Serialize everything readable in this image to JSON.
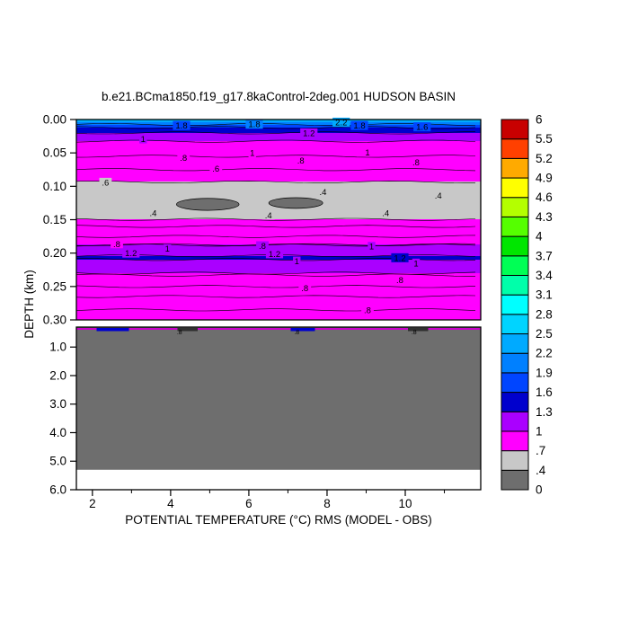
{
  "chart_data": {
    "type": "heatmap",
    "title": "b.e21.BCma1850.f19_g17.8kaControl-2deg.001 HUDSON BASIN",
    "xlabel": "POTENTIAL TEMPERATURE (°C) RMS (MODEL - OBS)",
    "ylabel": "DEPTH (km)",
    "xlim": [
      1.59,
      11.93
    ],
    "x_ticks": [
      2,
      4,
      6,
      8,
      10
    ],
    "x_minor_ticks": [
      3,
      5,
      7,
      9,
      11
    ],
    "levels": [
      0,
      0.4,
      0.7,
      1,
      1.3,
      1.6,
      1.9,
      2.2,
      2.5,
      2.8,
      3.1,
      3.4,
      3.7,
      4,
      4.3,
      4.6,
      4.9,
      5.2,
      5.5,
      6
    ],
    "colors": [
      "#6e6e6e",
      "#c8c8c8",
      "#ff00ff",
      "#aa00ff",
      "#0000cd",
      "#0045ff",
      "#0080ff",
      "#00aaff",
      "#00d4ff",
      "#00ffff",
      "#00ffaa",
      "#00ff55",
      "#00e600",
      "#55ff00",
      "#b4ff00",
      "#ffff00",
      "#ffaa00",
      "#ff4000",
      "#c80000"
    ],
    "colorbar_labels": [
      "0",
      ".4",
      ".7",
      "1",
      "1.3",
      "1.6",
      "1.9",
      "2.2",
      "2.5",
      "2.8",
      "3.1",
      "3.4",
      "3.7",
      "4",
      "4.3",
      "4.6",
      "4.9",
      "5.2",
      "5.5",
      "6"
    ],
    "panels": [
      {
        "name": "upper",
        "depth_range": [
          0,
          0.3
        ],
        "depth_ticks": [
          {
            "v": 0,
            "label": "0.00"
          },
          {
            "v": 0.05,
            "label": "0.05"
          },
          {
            "v": 0.1,
            "label": "0.10"
          },
          {
            "v": 0.15,
            "label": "0.15"
          },
          {
            "v": 0.2,
            "label": "0.20"
          },
          {
            "v": 0.25,
            "label": "0.25"
          },
          {
            "v": 0.3,
            "label": "0.30"
          }
        ],
        "profile": [
          [
            0.0,
            2.6
          ],
          [
            0.004,
            2.2
          ],
          [
            0.008,
            1.85
          ],
          [
            0.012,
            1.6
          ],
          [
            0.017,
            1.4
          ],
          [
            0.022,
            1.22
          ],
          [
            0.028,
            1.05
          ],
          [
            0.035,
            0.97
          ],
          [
            0.05,
            0.9
          ],
          [
            0.07,
            0.84
          ],
          [
            0.09,
            0.74
          ],
          [
            0.1,
            0.62
          ],
          [
            0.115,
            0.5
          ],
          [
            0.125,
            0.44
          ],
          [
            0.135,
            0.52
          ],
          [
            0.145,
            0.66
          ],
          [
            0.158,
            0.78
          ],
          [
            0.172,
            0.86
          ],
          [
            0.185,
            0.96
          ],
          [
            0.195,
            1.12
          ],
          [
            0.205,
            1.32
          ],
          [
            0.214,
            1.28
          ],
          [
            0.222,
            1.12
          ],
          [
            0.23,
            1.0
          ],
          [
            0.24,
            0.94
          ],
          [
            0.258,
            0.87
          ],
          [
            0.278,
            0.82
          ],
          [
            0.3,
            0.78
          ]
        ],
        "extra_contour_depths": [
          0.055,
          0.075,
          0.16,
          0.175,
          0.188,
          0.233,
          0.25,
          0.265,
          0.285
        ],
        "gray_lenses": [
          {
            "x": 4.95,
            "d": 0.127,
            "rx": 0.8,
            "rd": 0.009
          },
          {
            "x": 7.2,
            "d": 0.125,
            "rx": 0.69,
            "rd": 0.008
          }
        ],
        "contour_labels": [
          {
            "t": "1.8",
            "fx": 0.26,
            "d": 0.009
          },
          {
            "t": "1.8",
            "fx": 0.44,
            "d": 0.007
          },
          {
            "t": "2.2",
            "fx": 0.655,
            "d": 0.004
          },
          {
            "t": "1.8",
            "fx": 0.7,
            "d": 0.009
          },
          {
            "t": "1.6",
            "fx": 0.855,
            "d": 0.011
          },
          {
            "t": "1.2",
            "fx": 0.575,
            "d": 0.02
          },
          {
            "t": "1",
            "fx": 0.165,
            "d": 0.029
          },
          {
            "t": ".8",
            "fx": 0.265,
            "d": 0.057
          },
          {
            "t": "1",
            "fx": 0.435,
            "d": 0.05
          },
          {
            "t": ".8",
            "fx": 0.555,
            "d": 0.061
          },
          {
            "t": "1",
            "fx": 0.72,
            "d": 0.049
          },
          {
            "t": ".8",
            "fx": 0.84,
            "d": 0.064
          },
          {
            "t": ".6",
            "fx": 0.345,
            "d": 0.073
          },
          {
            "t": ".6",
            "fx": 0.072,
            "d": 0.094
          },
          {
            "t": ".4",
            "fx": 0.61,
            "d": 0.108
          },
          {
            "t": ".4",
            "fx": 0.895,
            "d": 0.114
          },
          {
            "t": ".4",
            "fx": 0.19,
            "d": 0.14
          },
          {
            "t": ".4",
            "fx": 0.475,
            "d": 0.143
          },
          {
            "t": ".4",
            "fx": 0.765,
            "d": 0.14
          },
          {
            "t": ".8",
            "fx": 0.1,
            "d": 0.186
          },
          {
            "t": "1.2",
            "fx": 0.135,
            "d": 0.2
          },
          {
            "t": "1",
            "fx": 0.225,
            "d": 0.193
          },
          {
            "t": ".8",
            "fx": 0.46,
            "d": 0.189
          },
          {
            "t": "1.2",
            "fx": 0.49,
            "d": 0.201
          },
          {
            "t": "1",
            "fx": 0.545,
            "d": 0.212
          },
          {
            "t": "1",
            "fx": 0.73,
            "d": 0.19
          },
          {
            "t": "1.2",
            "fx": 0.8,
            "d": 0.207
          },
          {
            "t": "1",
            "fx": 0.84,
            "d": 0.215
          },
          {
            "t": ".8",
            "fx": 0.8,
            "d": 0.24
          },
          {
            "t": ".8",
            "fx": 0.565,
            "d": 0.252
          },
          {
            "t": ".8",
            "fx": 0.72,
            "d": 0.285
          }
        ]
      },
      {
        "name": "lower",
        "depth_range": [
          0.3,
          6.0
        ],
        "depth_ticks": [
          {
            "v": 1,
            "label": "1.0"
          },
          {
            "v": 2,
            "label": "2.0"
          },
          {
            "v": 3,
            "label": "3.0"
          },
          {
            "v": 4,
            "label": "4.0"
          },
          {
            "v": 5,
            "label": "5.0"
          },
          {
            "v": 6,
            "label": "6.0"
          }
        ],
        "fill_value": 0.2,
        "no_data_below": 5.3,
        "edge_strip": {
          "base_color": "#cc00cc",
          "segments": [
            {
              "fx": 0.05,
              "w": 0.08,
              "color": "#0000cd"
            },
            {
              "fx": 0.25,
              "w": 0.05,
              "color": "#303030"
            },
            {
              "fx": 0.53,
              "w": 0.06,
              "color": "#0000cd"
            },
            {
              "fx": 0.82,
              "w": 0.05,
              "color": "#303030"
            }
          ]
        },
        "edge_labels": [
          {
            "t": ".8",
            "fx": 0.255
          },
          {
            "t": ".8",
            "fx": 0.545
          },
          {
            "t": ".8",
            "fx": 0.835
          }
        ]
      }
    ]
  }
}
